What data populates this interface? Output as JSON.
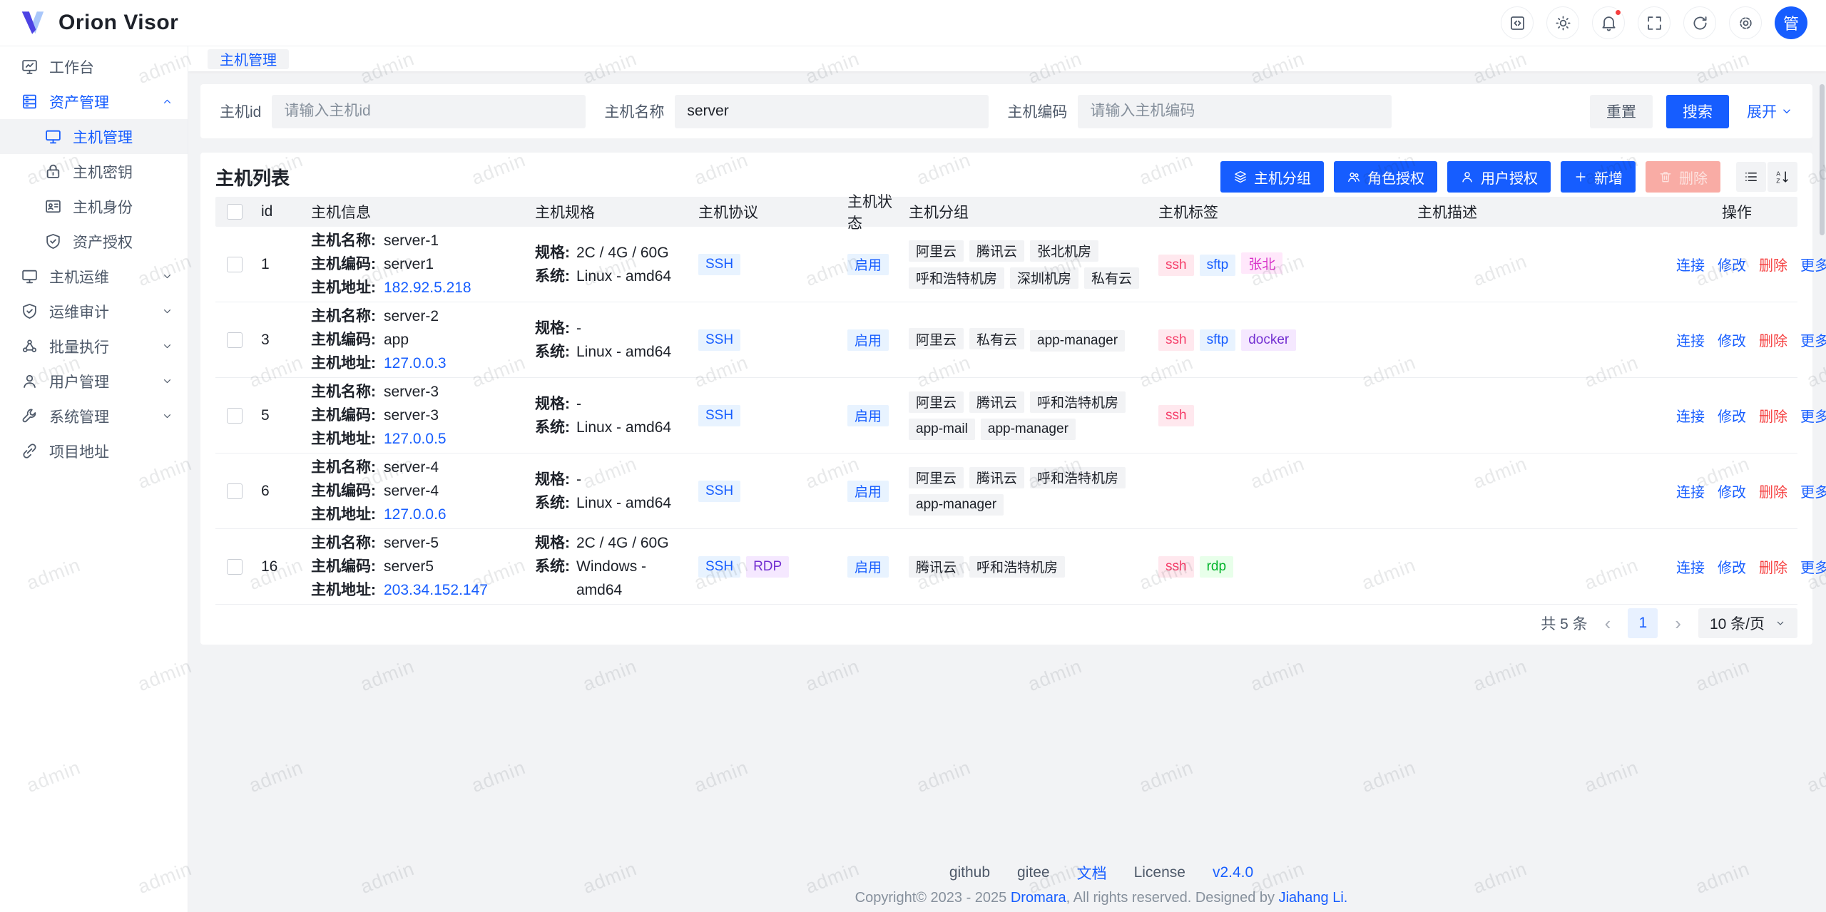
{
  "app": {
    "name": "Orion Visor",
    "avatar_text": "管"
  },
  "watermark": {
    "text": "admin"
  },
  "header": {
    "icons": [
      {
        "name": "code-panel",
        "icon": "code",
        "badge": false
      },
      {
        "name": "theme-toggle",
        "icon": "sun",
        "badge": false
      },
      {
        "name": "notifications",
        "icon": "bell",
        "badge": true
      },
      {
        "name": "fullscreen",
        "icon": "fullscreen",
        "badge": false
      },
      {
        "name": "refresh",
        "icon": "refresh",
        "badge": false
      },
      {
        "name": "settings",
        "icon": "gear",
        "badge": false
      }
    ]
  },
  "sidebar": {
    "items": [
      {
        "label": "工作台",
        "icon": "workbench"
      },
      {
        "label": "资产管理",
        "icon": "assets",
        "active": true,
        "expanded": true,
        "children": [
          {
            "label": "主机管理",
            "icon": "host",
            "selected": true
          },
          {
            "label": "主机密钥",
            "icon": "lock"
          },
          {
            "label": "主机身份",
            "icon": "idcard"
          },
          {
            "label": "资产授权",
            "icon": "shield"
          }
        ]
      },
      {
        "label": "主机运维",
        "icon": "host",
        "collapsible": true
      },
      {
        "label": "运维审计",
        "icon": "shield",
        "collapsible": true
      },
      {
        "label": "批量执行",
        "icon": "cluster",
        "collapsible": true
      },
      {
        "label": "用户管理",
        "icon": "user",
        "collapsible": true
      },
      {
        "label": "系统管理",
        "icon": "wrench",
        "collapsible": true
      },
      {
        "label": "项目地址",
        "icon": "link"
      }
    ]
  },
  "tabs": [
    {
      "label": "主机管理",
      "active": true
    }
  ],
  "search": {
    "fields": [
      {
        "label": "主机id",
        "placeholder": "请输入主机id",
        "value": ""
      },
      {
        "label": "主机名称",
        "placeholder": "",
        "value": "server"
      },
      {
        "label": "主机编码",
        "placeholder": "请输入主机编码",
        "value": ""
      }
    ],
    "reset_label": "重置",
    "search_label": "搜索",
    "expand_label": "展开"
  },
  "table": {
    "title": "主机列表",
    "toolbar": [
      {
        "label": "主机分组",
        "icon": "layers",
        "style": "primary"
      },
      {
        "label": "角色授权",
        "icon": "usergroup",
        "style": "primary"
      },
      {
        "label": "用户授权",
        "icon": "user",
        "style": "primary"
      },
      {
        "label": "新增",
        "icon": "plus",
        "style": "primary"
      },
      {
        "label": "删除",
        "icon": "trash",
        "style": "danger-disabled"
      }
    ],
    "view_buttons": [
      {
        "name": "table-view",
        "icon": "listview"
      },
      {
        "name": "sort",
        "icon": "sort"
      }
    ],
    "columns": [
      "id",
      "主机信息",
      "主机规格",
      "主机协议",
      "主机状态",
      "主机分组",
      "主机标签",
      "主机描述",
      "操作"
    ],
    "info_labels": {
      "name": "主机名称:",
      "code": "主机编码:",
      "address": "主机地址:"
    },
    "spec_labels": {
      "spec": "规格:",
      "system": "系统:"
    },
    "action_labels": [
      "连接",
      "修改",
      "删除",
      "更多"
    ],
    "rows": [
      {
        "id": "1",
        "name": "server-1",
        "code": "server1",
        "address": "182.92.5.218",
        "spec": "2C / 4G / 60G",
        "system": "Linux - amd64",
        "protocols": [
          {
            "label": "SSH",
            "color": "blue"
          }
        ],
        "status": "启用",
        "groups": [
          "阿里云",
          "腾讯云",
          "张北机房",
          "呼和浩特机房",
          "深圳机房",
          "私有云"
        ],
        "tags": [
          {
            "label": "ssh",
            "color": "pink"
          },
          {
            "label": "sftp",
            "color": "blue"
          },
          {
            "label": "张北",
            "color": "magenta"
          }
        ],
        "description": ""
      },
      {
        "id": "3",
        "name": "server-2",
        "code": "app",
        "address": "127.0.0.3",
        "spec": "-",
        "system": "Linux - amd64",
        "protocols": [
          {
            "label": "SSH",
            "color": "blue"
          }
        ],
        "status": "启用",
        "groups": [
          "阿里云",
          "私有云",
          "app-manager"
        ],
        "tags": [
          {
            "label": "ssh",
            "color": "pink"
          },
          {
            "label": "sftp",
            "color": "blue"
          },
          {
            "label": "docker",
            "color": "purple"
          }
        ],
        "description": ""
      },
      {
        "id": "5",
        "name": "server-3",
        "code": "server-3",
        "address": "127.0.0.5",
        "spec": "-",
        "system": "Linux - amd64",
        "protocols": [
          {
            "label": "SSH",
            "color": "blue"
          }
        ],
        "status": "启用",
        "groups": [
          "阿里云",
          "腾讯云",
          "呼和浩特机房",
          "app-mail",
          "app-manager"
        ],
        "tags": [
          {
            "label": "ssh",
            "color": "pink"
          }
        ],
        "description": ""
      },
      {
        "id": "6",
        "name": "server-4",
        "code": "server-4",
        "address": "127.0.0.6",
        "spec": "-",
        "system": "Linux - amd64",
        "protocols": [
          {
            "label": "SSH",
            "color": "blue"
          }
        ],
        "status": "启用",
        "groups": [
          "阿里云",
          "腾讯云",
          "呼和浩特机房",
          "app-manager"
        ],
        "tags": [],
        "description": ""
      },
      {
        "id": "16",
        "name": "server-5",
        "code": "server5",
        "address": "203.34.152.147",
        "spec": "2C / 4G / 60G",
        "system": "Windows - amd64",
        "protocols": [
          {
            "label": "SSH",
            "color": "blue"
          },
          {
            "label": "RDP",
            "color": "purple"
          }
        ],
        "status": "启用",
        "groups": [
          "腾讯云",
          "呼和浩特机房"
        ],
        "tags": [
          {
            "label": "ssh",
            "color": "pink"
          },
          {
            "label": "rdp",
            "color": "green"
          }
        ],
        "description": ""
      }
    ]
  },
  "pagination": {
    "total": "共 5 条",
    "prev": "‹",
    "page": "1",
    "next": "›",
    "page_size": "10 条/页"
  },
  "footer": {
    "links": [
      {
        "label": "github",
        "accent": false
      },
      {
        "label": "gitee",
        "accent": false
      },
      {
        "label": "文档",
        "accent": true
      },
      {
        "label": "License",
        "accent": false
      },
      {
        "label": "v2.4.0",
        "accent": true
      }
    ],
    "copyright": {
      "prefix": "Copyright© 2023 - 2025 ",
      "brand": "Dromara",
      "middle": ", All rights reserved. Designed by ",
      "author": "Jiahang Li."
    }
  },
  "colors": {
    "accent": "#165DFF",
    "danger": "#F53F3F",
    "tag_blue_bg": "#E8F3FF",
    "tag_purple": "#722ED1",
    "tag_pink": "#F53F6A",
    "tag_magenta": "#D933C9",
    "tag_green": "#00B42A",
    "fill": "#F2F3F5"
  }
}
